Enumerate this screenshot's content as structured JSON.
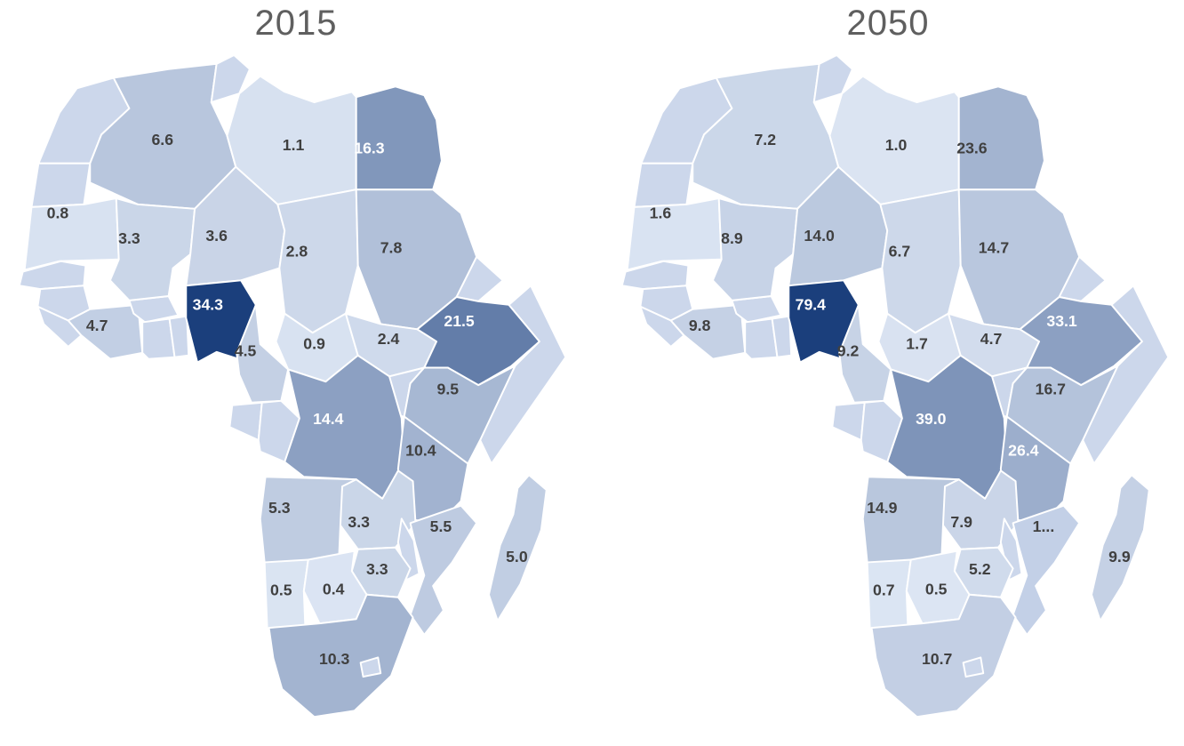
{
  "page": {
    "background": "#ffffff"
  },
  "chart_data": {
    "type": "heatmap",
    "subtype": "africa_choropleth_pair",
    "description": "Two side-by-side choropleth maps of Africa with numeric value labels per country, shaded light-to-dark blue relative to each map's maximum value",
    "maps": [
      {
        "id": "2015",
        "title": "2015"
      },
      {
        "id": "2050",
        "title": "2050"
      }
    ],
    "palette": {
      "scale_min": "#dde6f4",
      "scale_max": "#1b3f7c",
      "no_data_fill": "#ccd7eb",
      "border": "#ffffff",
      "label_dark": "#404040",
      "label_light": "#ffffff",
      "title_color": "#5f5f5f"
    },
    "countries": [
      {
        "id": "mauritania",
        "name": "Mauritania",
        "values": {
          "2015": 0.8,
          "2050": 1.6
        },
        "labels": {
          "2015": "0.8",
          "2050": "1.6"
        }
      },
      {
        "id": "algeria",
        "name": "Algeria",
        "values": {
          "2015": 6.6,
          "2050": 7.2
        },
        "labels": {
          "2015": "6.6",
          "2050": "7.2"
        }
      },
      {
        "id": "libya",
        "name": "Libya",
        "values": {
          "2015": 1.1,
          "2050": 1.0
        },
        "labels": {
          "2015": "1.1",
          "2050": "1.0"
        }
      },
      {
        "id": "egypt",
        "name": "Egypt",
        "values": {
          "2015": 16.3,
          "2050": 23.6
        },
        "labels": {
          "2015": "16.3",
          "2050": "23.6"
        }
      },
      {
        "id": "mali",
        "name": "Mali",
        "values": {
          "2015": 3.3,
          "2050": 8.9
        },
        "labels": {
          "2015": "3.3",
          "2050": "8.9"
        }
      },
      {
        "id": "niger",
        "name": "Niger",
        "values": {
          "2015": 3.6,
          "2050": 14.0
        },
        "labels": {
          "2015": "3.6",
          "2050": "14.0"
        }
      },
      {
        "id": "chad",
        "name": "Chad",
        "values": {
          "2015": 2.8,
          "2050": 6.7
        },
        "labels": {
          "2015": "2.8",
          "2050": "6.7"
        }
      },
      {
        "id": "sudan",
        "name": "Sudan",
        "values": {
          "2015": 7.8,
          "2050": 14.7
        },
        "labels": {
          "2015": "7.8",
          "2050": "14.7"
        }
      },
      {
        "id": "cote_divoire",
        "name": "Cote d'Ivoire",
        "values": {
          "2015": 4.7,
          "2050": 9.8
        },
        "labels": {
          "2015": "4.7",
          "2050": "9.8"
        }
      },
      {
        "id": "nigeria",
        "name": "Nigeria",
        "values": {
          "2015": 34.3,
          "2050": 79.4
        },
        "labels": {
          "2015": "34.3",
          "2050": "79.4"
        }
      },
      {
        "id": "cameroon",
        "name": "Cameroon",
        "values": {
          "2015": 4.5,
          "2050": 9.2
        },
        "labels": {
          "2015": "4.5",
          "2050": "9.2"
        }
      },
      {
        "id": "car",
        "name": "Central African Republic",
        "values": {
          "2015": 0.9,
          "2050": 1.7
        },
        "labels": {
          "2015": "0.9",
          "2050": "1.7"
        }
      },
      {
        "id": "south_sudan",
        "name": "South Sudan",
        "values": {
          "2015": 2.4,
          "2050": 4.7
        },
        "labels": {
          "2015": "2.4",
          "2050": "4.7"
        }
      },
      {
        "id": "ethiopia",
        "name": "Ethiopia",
        "values": {
          "2015": 21.5,
          "2050": 33.1
        },
        "labels": {
          "2015": "21.5",
          "2050": "33.1"
        }
      },
      {
        "id": "kenya",
        "name": "Kenya",
        "values": {
          "2015": 9.5,
          "2050": 16.7
        },
        "labels": {
          "2015": "9.5",
          "2050": "16.7"
        }
      },
      {
        "id": "drc",
        "name": "DR Congo",
        "values": {
          "2015": 14.4,
          "2050": 39.0
        },
        "labels": {
          "2015": "14.4",
          "2050": "39.0"
        }
      },
      {
        "id": "tanzania",
        "name": "Tanzania",
        "values": {
          "2015": 10.4,
          "2050": 26.4
        },
        "labels": {
          "2015": "10.4",
          "2050": "26.4"
        }
      },
      {
        "id": "angola",
        "name": "Angola",
        "values": {
          "2015": 5.3,
          "2050": 14.9
        },
        "labels": {
          "2015": "5.3",
          "2050": "14.9"
        }
      },
      {
        "id": "zambia",
        "name": "Zambia",
        "values": {
          "2015": 3.3,
          "2050": 7.9
        },
        "labels": {
          "2015": "3.3",
          "2050": "7.9"
        }
      },
      {
        "id": "mozambique",
        "name": "Mozambique",
        "values": {
          "2015": 5.5,
          "2050": null
        },
        "labels": {
          "2015": "5.5",
          "2050": "1..."
        },
        "fills": {
          "2050": "#c3d0e7"
        }
      },
      {
        "id": "zimbabwe",
        "name": "Zimbabwe",
        "values": {
          "2015": 3.3,
          "2050": 5.2
        },
        "labels": {
          "2015": "3.3",
          "2050": "5.2"
        }
      },
      {
        "id": "madagascar",
        "name": "Madagascar",
        "values": {
          "2015": 5.0,
          "2050": 9.9
        },
        "labels": {
          "2015": "5.0",
          "2050": "9.9"
        }
      },
      {
        "id": "namibia",
        "name": "Namibia",
        "values": {
          "2015": 0.5,
          "2050": 0.7
        },
        "labels": {
          "2015": "0.5",
          "2050": "0.7"
        }
      },
      {
        "id": "botswana",
        "name": "Botswana",
        "values": {
          "2015": 0.4,
          "2050": 0.5
        },
        "labels": {
          "2015": "0.4",
          "2050": "0.5"
        }
      },
      {
        "id": "south_africa",
        "name": "South Africa",
        "values": {
          "2015": 10.3,
          "2050": 10.7
        },
        "labels": {
          "2015": "10.3",
          "2050": "10.7"
        }
      }
    ]
  }
}
